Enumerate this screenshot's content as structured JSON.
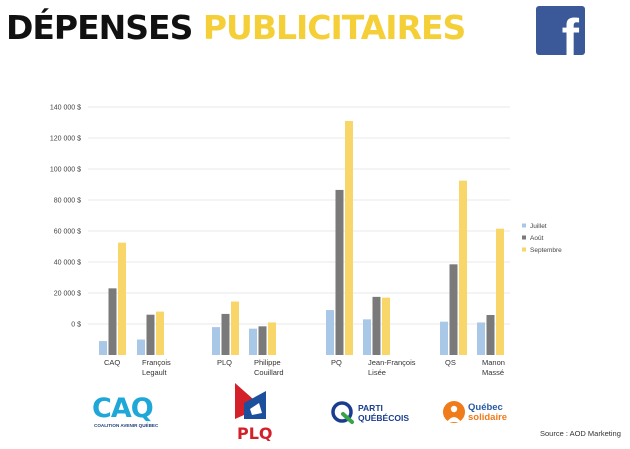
{
  "header": {
    "title_word1": "DÉPENSES",
    "title_word2": "PUBLICITAIRES",
    "facebook_glyph": "f",
    "colors": {
      "title_dark": "#111111",
      "title_yellow": "#f5cf38",
      "facebook": "#3b5998"
    }
  },
  "chart_data": {
    "type": "bar",
    "categories": [
      "CAQ",
      "François Legault",
      "PLQ",
      "Philippe Couillard",
      "PQ",
      "Jean-François Lisée",
      "QS",
      "Manon Massé"
    ],
    "category_labels": [
      [
        "CAQ"
      ],
      [
        "François",
        "Legault"
      ],
      [
        "PLQ"
      ],
      [
        "Philippe",
        "Couillard"
      ],
      [
        "PQ"
      ],
      [
        "Jean-François",
        "Lisée"
      ],
      [
        "QS"
      ],
      [
        "Manon",
        "Massé"
      ]
    ],
    "series": [
      {
        "name": "Juillet",
        "color": "#a9c8e8",
        "values": [
          -11000,
          -10000,
          -2000,
          -3000,
          9000,
          3000,
          1500,
          1000
        ]
      },
      {
        "name": "Août",
        "color": "#7a7a7a",
        "values": [
          23000,
          6000,
          6500,
          -1500,
          86500,
          17500,
          38500,
          5800
        ]
      },
      {
        "name": "Septembre",
        "color": "#f8d66a",
        "values": [
          52500,
          8000,
          14500,
          1000,
          131000,
          17000,
          92500,
          61500
        ]
      }
    ],
    "y_ticks": [
      140000,
      120000,
      100000,
      80000,
      60000,
      40000,
      20000,
      0
    ],
    "y_tick_labels": [
      "140 000 $",
      "120 000 $",
      "100 000 $",
      "80 000 $",
      "60 000 $",
      "40 000 $",
      "20 000 $",
      "0 $"
    ],
    "ylim": [
      -20000,
      140000
    ],
    "grid": true,
    "legend_position": "right"
  },
  "logos": {
    "caq": {
      "text": "CAQ",
      "subtext": "COALITION AVENIR QUÉBEC",
      "color": "#1fa7d8"
    },
    "plq": {
      "text": "PLQ",
      "color": "#d3202a",
      "blue": "#1c4f9c"
    },
    "pq": {
      "line1": "PARTI",
      "line2": "QUÉBÉCOIS",
      "blue": "#1a3d8f",
      "green": "#3aa44a"
    },
    "qs": {
      "line1": "Québec",
      "line2": "solidaire",
      "orange": "#ef7b1a",
      "blue": "#2b5aa6"
    }
  },
  "source": "Source : AOD Marketing"
}
